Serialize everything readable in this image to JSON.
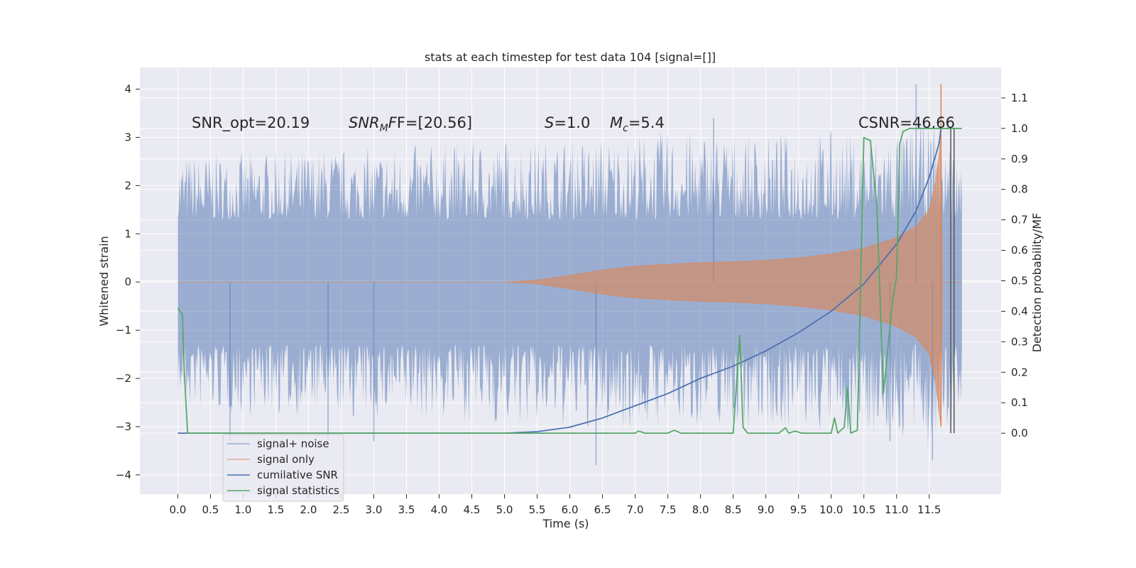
{
  "chart_data": {
    "type": "line",
    "title": "stats at each timestep for test data 104 [signal=[]]",
    "xlabel": "Time (s)",
    "ylabel_left": "Whitened strain",
    "ylabel_right": "Detection probability/MF",
    "xlim": [
      -0.58,
      12.6
    ],
    "ylim_left": [
      -4.4,
      4.45
    ],
    "ylim_right": [
      -0.2,
      1.2
    ],
    "x_ticks": [
      0.0,
      0.5,
      1.0,
      1.5,
      2.0,
      2.5,
      3.0,
      3.5,
      4.0,
      4.5,
      5.0,
      5.5,
      6.0,
      6.5,
      7.0,
      7.5,
      8.0,
      8.5,
      9.0,
      9.5,
      10.0,
      10.5,
      11.0,
      11.5
    ],
    "y_ticks_left": [
      4,
      3,
      2,
      1,
      0,
      -1,
      -2,
      -3,
      -4
    ],
    "y_ticks_right": [
      1.1,
      1.0,
      0.9,
      0.8,
      0.7,
      0.6,
      0.5,
      0.4,
      0.3,
      0.2,
      0.1,
      0.0
    ],
    "grid": true,
    "legend_position": "lower-left",
    "annotations": {
      "snr_opt": "SNR_opt=20.19",
      "snr_mf_main": "SNR",
      "snr_mf_sub": "M",
      "snr_mf_rest": "F=[20.56]",
      "s_main": "S",
      "s_rest": "=1.0",
      "mc_main": "M",
      "mc_sub": "c",
      "mc_rest": "=5.4",
      "csnr": "CSNR=46.66"
    },
    "series": [
      {
        "name": "signal+ noise",
        "color": "#4c72b0",
        "axis": "left",
        "band": {
          "x": [
            0.0,
            1.0,
            2.0,
            3.0,
            4.0,
            5.0,
            6.0,
            7.0,
            8.0,
            9.0,
            10.0,
            10.5,
            11.0,
            11.5,
            11.7,
            12.0
          ],
          "upper": [
            2.7,
            2.7,
            2.8,
            2.8,
            2.9,
            3.0,
            3.0,
            3.1,
            3.2,
            3.1,
            3.2,
            3.1,
            3.3,
            3.4,
            3.5,
            2.5
          ],
          "lower": [
            -2.7,
            -2.8,
            -2.8,
            -2.9,
            -2.9,
            -3.0,
            -3.1,
            -3.1,
            -3.0,
            -3.1,
            -3.2,
            -3.2,
            -3.3,
            -3.5,
            -3.6,
            -2.5
          ]
        },
        "peaks": [
          [
            0.8,
            -3.3
          ],
          [
            3.0,
            -3.3
          ],
          [
            6.4,
            -3.8
          ],
          [
            8.2,
            3.4
          ],
          [
            10.9,
            -3.3
          ],
          [
            11.3,
            4.1
          ],
          [
            11.55,
            -3.7
          ],
          [
            2.3,
            -3.3
          ]
        ]
      },
      {
        "name": "signal only",
        "color": "#dd8452",
        "axis": "left",
        "envelope": {
          "x": [
            0.0,
            5.0,
            5.5,
            6.0,
            6.5,
            7.0,
            7.5,
            8.0,
            8.5,
            9.0,
            9.5,
            10.0,
            10.5,
            11.0,
            11.3,
            11.5,
            11.6,
            11.68,
            11.7,
            12.0
          ],
          "amplitude": [
            0.0,
            0.0,
            0.04,
            0.14,
            0.25,
            0.33,
            0.37,
            0.4,
            0.42,
            0.45,
            0.5,
            0.58,
            0.7,
            0.92,
            1.15,
            1.5,
            2.1,
            3.0,
            0.0,
            0.0
          ]
        },
        "spike": [
          [
            11.68,
            4.1
          ],
          [
            11.68,
            -3.0
          ]
        ]
      },
      {
        "name": "cumilative SNR",
        "color": "#4c72b0",
        "axis": "right",
        "x": [
          0.0,
          5.0,
          5.5,
          6.0,
          6.5,
          7.0,
          7.5,
          8.0,
          8.5,
          9.0,
          9.5,
          10.0,
          10.5,
          11.0,
          11.3,
          11.5,
          11.65,
          11.68
        ],
        "y": [
          0.0,
          0.0,
          0.005,
          0.02,
          0.05,
          0.09,
          0.13,
          0.18,
          0.22,
          0.27,
          0.33,
          0.4,
          0.49,
          0.62,
          0.73,
          0.84,
          0.95,
          1.0
        ]
      },
      {
        "name": "signal statistics",
        "color": "#55a868",
        "axis": "right",
        "x": [
          0.0,
          0.07,
          0.1,
          0.15,
          0.3,
          5.0,
          7.0,
          7.05,
          7.15,
          7.5,
          7.6,
          7.7,
          8.5,
          8.6,
          8.65,
          8.72,
          9.2,
          9.3,
          9.35,
          9.45,
          9.55,
          10.0,
          10.05,
          10.1,
          10.2,
          10.25,
          10.3,
          10.4,
          10.5,
          10.6,
          10.7,
          10.8,
          10.9,
          10.95,
          11.0,
          11.05,
          11.1,
          11.2,
          11.3,
          12.0
        ],
        "y": [
          0.41,
          0.39,
          0.2,
          0.0,
          0.0,
          0.0,
          0.0,
          0.007,
          0.0,
          0.0,
          0.01,
          0.0,
          0.0,
          0.32,
          0.02,
          0.0,
          0.0,
          0.018,
          0.0,
          0.007,
          0.0,
          0.0,
          0.05,
          0.0,
          0.02,
          0.15,
          0.0,
          0.01,
          0.97,
          0.96,
          0.74,
          0.13,
          0.35,
          0.45,
          0.51,
          0.95,
          0.99,
          1.0,
          1.0,
          1.0
        ]
      }
    ],
    "markers": [
      {
        "x": 11.83,
        "color": "#555555"
      },
      {
        "x": 11.88,
        "color": "#555555"
      }
    ],
    "colors": {
      "background": "#eaeaf2",
      "grid": "#ffffff"
    }
  }
}
